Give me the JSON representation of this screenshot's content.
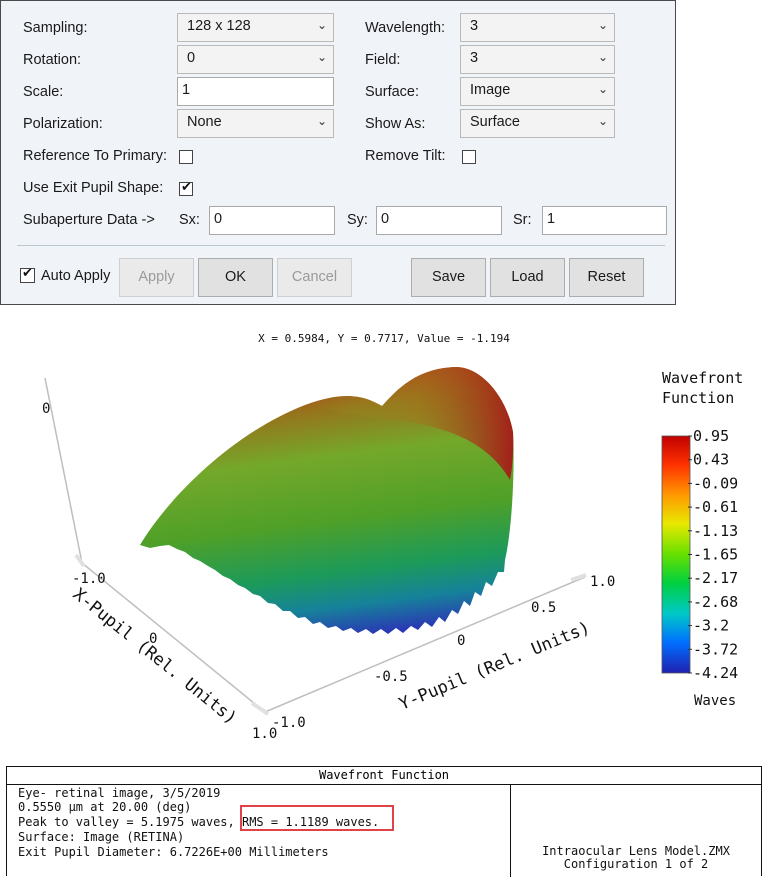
{
  "settings": {
    "sampling": {
      "label": "Sampling:",
      "value": "128 x 128"
    },
    "rotation": {
      "label": "Rotation:",
      "value": "0"
    },
    "scale": {
      "label": "Scale:",
      "value": "1"
    },
    "polarization": {
      "label": "Polarization:",
      "value": "None"
    },
    "reference_to_primary": {
      "label": "Reference To Primary:",
      "checked": false
    },
    "use_exit_pupil_shape": {
      "label": "Use Exit Pupil Shape:",
      "checked": true
    },
    "wavelength": {
      "label": "Wavelength:",
      "value": "3"
    },
    "field": {
      "label": "Field:",
      "value": "3"
    },
    "surface": {
      "label": "Surface:",
      "value": "Image"
    },
    "show_as": {
      "label": "Show As:",
      "value": "Surface"
    },
    "remove_tilt": {
      "label": "Remove Tilt:",
      "checked": false
    },
    "subaperture": {
      "label": "Subaperture Data ->",
      "sx_label": "Sx:",
      "sx": "0",
      "sy_label": "Sy:",
      "sy": "0",
      "sr_label": "Sr:",
      "sr": "1"
    },
    "auto_apply": {
      "label": "Auto Apply",
      "checked": true
    },
    "buttons": {
      "apply": "Apply",
      "ok": "OK",
      "cancel": "Cancel",
      "save": "Save",
      "load": "Load",
      "reset": "Reset"
    }
  },
  "plot": {
    "readout": "X = 0.5984, Y = 0.7717, Value = -1.194",
    "z_tick": "0",
    "x_axis": {
      "label": "X-Pupil (Rel. Units)",
      "ticks": [
        "-1.0",
        "0",
        "1.0"
      ]
    },
    "y_axis": {
      "label": "Y-Pupil (Rel. Units)",
      "ticks": [
        "-1.0",
        "-0.5",
        "0",
        "0.5",
        "1.0"
      ]
    },
    "colorbar": {
      "title_line1": "Wavefront",
      "title_line2": "Function",
      "units": "Waves",
      "ticks": [
        "0.95",
        "0.43",
        "-0.09",
        "-0.61",
        "-1.13",
        "-1.65",
        "-2.17",
        "-2.68",
        "-3.2",
        "-3.72",
        "-4.24"
      ]
    }
  },
  "footer": {
    "title": "Wavefront Function",
    "line1": "Eye- retinal image, 3/5/2019",
    "line2": "0.5550 µm at 20.00 (deg)",
    "line3a": "Peak to valley = 5.1975 waves,",
    "line3b": "RMS = 1.1189 waves.",
    "line4": "Surface: Image (RETINA)",
    "line5": "Exit Pupil Diameter: 6.7226E+00 Millimeters",
    "right1": "Intraocular Lens Model.ZMX",
    "right2": "Configuration 1 of 2"
  },
  "colors": {
    "accent_highlight": "#e0424a",
    "panel_bg": "#f0f3f7"
  }
}
